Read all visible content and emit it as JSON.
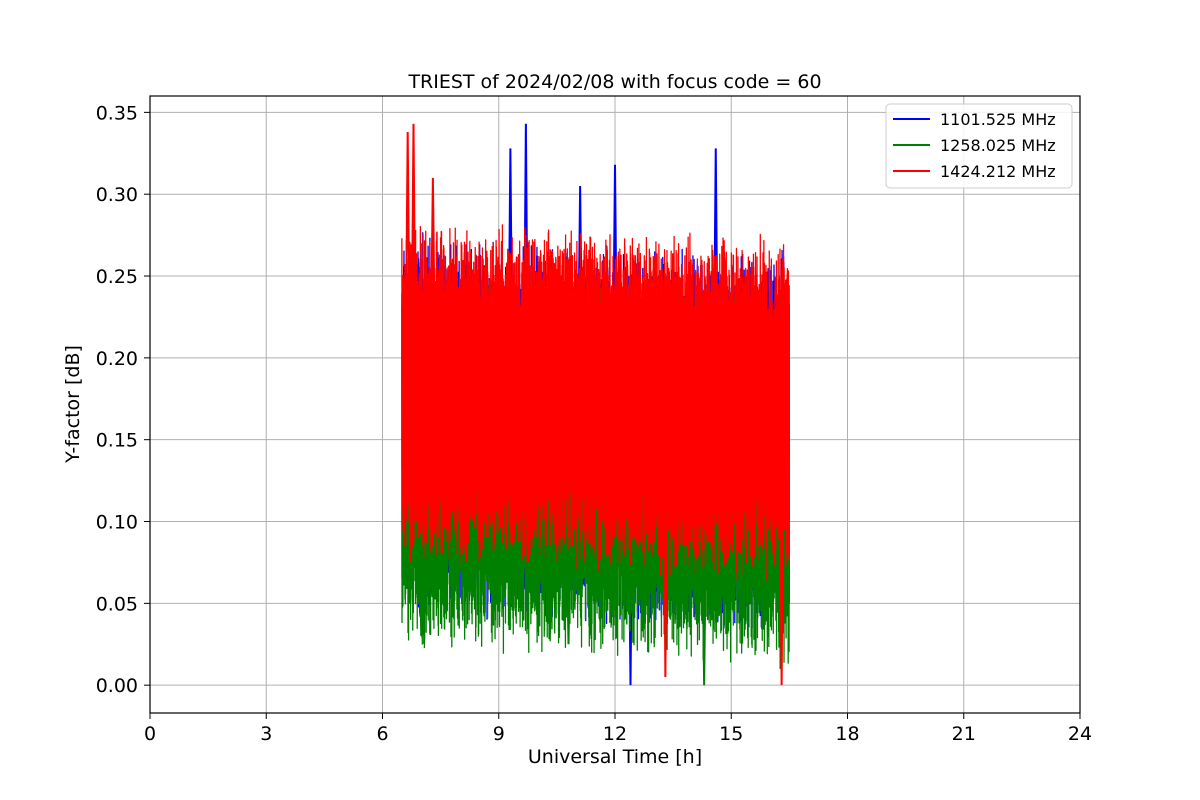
{
  "chart_data": {
    "type": "line",
    "title": "TRIEST of 2024/02/08 with focus code = 60",
    "xlabel": "Universal Time [h]",
    "ylabel": "Y-factor [dB]",
    "xlim": [
      0,
      24
    ],
    "ylim": [
      -0.017,
      0.36
    ],
    "xticks": [
      0,
      3,
      6,
      9,
      12,
      15,
      18,
      21,
      24
    ],
    "yticks": [
      0.0,
      0.05,
      0.1,
      0.15,
      0.2,
      0.25,
      0.3,
      0.35
    ],
    "ytick_labels": [
      "0.00",
      "0.05",
      "0.10",
      "0.15",
      "0.20",
      "0.25",
      "0.30",
      "0.35"
    ],
    "grid": true,
    "legend_position": "top-right",
    "time_range": [
      6.5,
      16.5
    ],
    "series": [
      {
        "name": "1101.525 MHz",
        "color": "#0000ff",
        "envelope": {
          "upper_mean": 0.25,
          "lower_mean": 0.07,
          "max": 0.343,
          "min": 0.0
        },
        "peaks": [
          {
            "x": 9.3,
            "y": 0.328
          },
          {
            "x": 9.7,
            "y": 0.343
          },
          {
            "x": 11.1,
            "y": 0.305
          },
          {
            "x": 12.0,
            "y": 0.318
          },
          {
            "x": 14.6,
            "y": 0.328
          },
          {
            "x": 12.4,
            "y": 0.0
          }
        ]
      },
      {
        "name": "1258.025 MHz",
        "color": "#008000",
        "envelope": {
          "upper_mean": 0.23,
          "lower_mean": 0.05,
          "max": 0.285,
          "min": 0.0
        },
        "peaks": [
          {
            "x": 14.3,
            "y": 0.0
          },
          {
            "x": 7.0,
            "y": 0.03
          },
          {
            "x": 10.8,
            "y": 0.025
          }
        ]
      },
      {
        "name": "1424.212 MHz",
        "color": "#ff0000",
        "envelope": {
          "upper_mean": 0.26,
          "lower_mean": 0.1,
          "max": 0.343,
          "min": 0.0
        },
        "peaks": [
          {
            "x": 6.65,
            "y": 0.338
          },
          {
            "x": 6.8,
            "y": 0.343
          },
          {
            "x": 7.3,
            "y": 0.31
          },
          {
            "x": 16.3,
            "y": 0.0
          },
          {
            "x": 13.3,
            "y": 0.005
          }
        ]
      }
    ]
  }
}
